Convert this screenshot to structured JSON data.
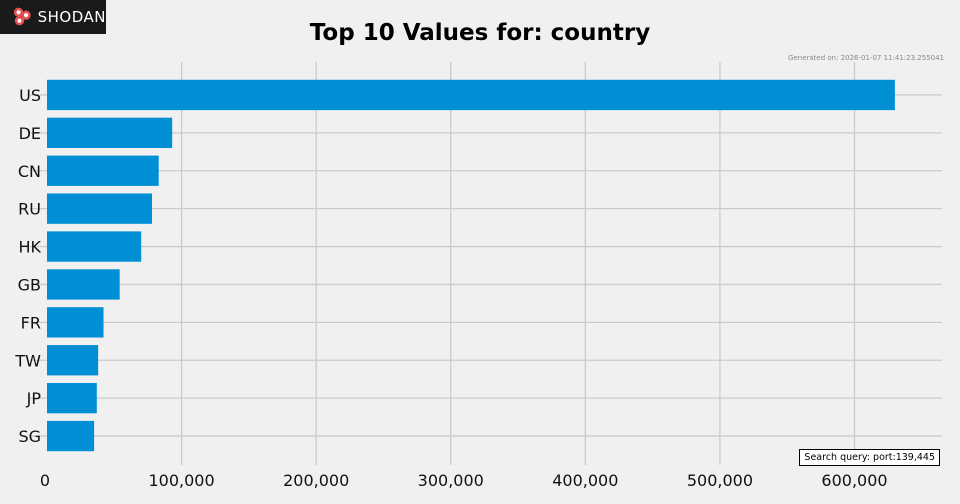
{
  "brand": {
    "name": "Shodan",
    "logo_text": "SHODAN",
    "logo_icon": "shodan-logo-icon"
  },
  "generated_text": "Generated on: 2026-01-07 11:41:23.255041",
  "search_query_text": "Search query: port:139,445",
  "colors": {
    "bar": "#008fd5",
    "background": "#f0f0f0",
    "grid": "#cbcbcb"
  },
  "chart_data": {
    "type": "bar",
    "orientation": "horizontal",
    "title": "Top 10 Values for: country",
    "xlabel": "",
    "ylabel": "",
    "categories": [
      "US",
      "DE",
      "CN",
      "RU",
      "HK",
      "GB",
      "FR",
      "TW",
      "JP",
      "SG"
    ],
    "values": [
      630000,
      93000,
      83000,
      78000,
      70000,
      54000,
      42000,
      38000,
      37000,
      35000
    ],
    "xlim": [
      0,
      665000
    ],
    "xticks": [
      0,
      100000,
      200000,
      300000,
      400000,
      500000,
      600000
    ],
    "xtick_labels": [
      "0",
      "100,000",
      "200,000",
      "300,000",
      "400,000",
      "500,000",
      "600,000"
    ],
    "grid": true,
    "legend": "none"
  }
}
